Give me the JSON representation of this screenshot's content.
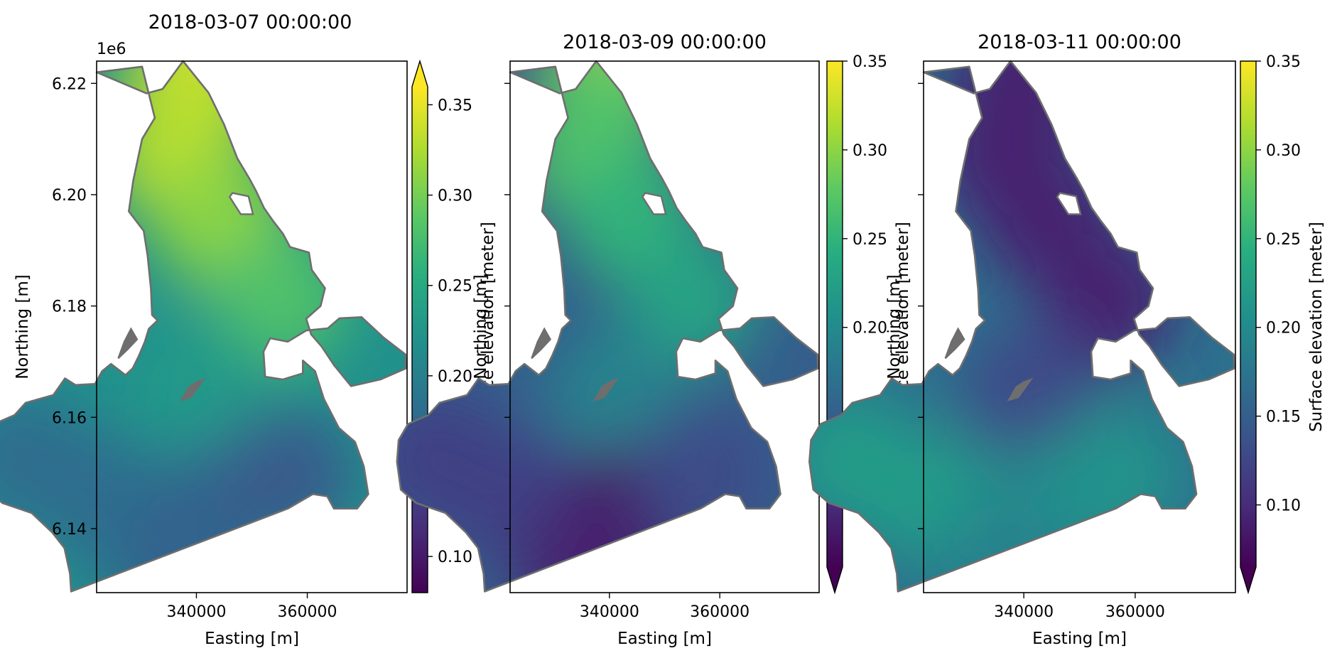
{
  "figure": {
    "panels": [
      {
        "title": "2018-03-07 00:00:00",
        "x_label": "Easting [m]",
        "y_label": "Northing [m]",
        "y_offset_label": "1e6",
        "colorbar_label": "Surface elevation [meter]"
      },
      {
        "title": "2018-03-09 00:00:00",
        "x_label": "Easting [m]",
        "y_label": "Northing [m]",
        "colorbar_label": "Surface elevation [meter]"
      },
      {
        "title": "2018-03-11 00:00:00",
        "x_label": "Easting [m]",
        "y_label": "Northing [m]",
        "colorbar_label": "Surface elevation [meter]"
      }
    ],
    "colormap": [
      "#440154",
      "#472d7b",
      "#3b528b",
      "#2c728e",
      "#21918c",
      "#28ae80",
      "#5ec962",
      "#addc30",
      "#fde725"
    ],
    "outline_color": "#6e6e6e"
  },
  "chart_data": [
    {
      "type": "heatmap",
      "title": "2018-03-07 00:00:00",
      "xlabel": "Easting [m]",
      "ylabel": "Northing [m]",
      "xlim": [
        322000,
        378000
      ],
      "ylim": [
        6128500,
        6224000
      ],
      "x_ticks": [
        340000,
        360000
      ],
      "x_tick_labels": [
        "340000",
        "360000"
      ],
      "y_ticks": [
        6140000,
        6160000,
        6180000,
        6200000,
        6220000
      ],
      "y_tick_labels": [
        "6.14",
        "6.16",
        "6.18",
        "6.20",
        "6.22"
      ],
      "y_offset_text": "1e6",
      "colorbar": {
        "label": "Surface elevation [meter]",
        "range": [
          0.08,
          0.36
        ],
        "ticks": [
          0.1,
          0.15,
          0.2,
          0.25,
          0.3,
          0.35
        ],
        "tick_labels": [
          "0.10",
          "0.15",
          "0.20",
          "0.25",
          "0.30",
          "0.35"
        ],
        "extend": "max"
      },
      "surface_elevation_m": [
        {
          "region": "north_tip",
          "value": 0.35
        },
        {
          "region": "north_upper",
          "value": 0.33
        },
        {
          "region": "north_middle",
          "value": 0.31
        },
        {
          "region": "east_lobe",
          "value": 0.28
        },
        {
          "region": "channel",
          "value": 0.23
        },
        {
          "region": "south_west",
          "value": 0.18
        },
        {
          "region": "south_center",
          "value": 0.17
        },
        {
          "region": "south_east",
          "value": 0.16
        },
        {
          "region": "south_tip",
          "value": 0.17
        }
      ]
    },
    {
      "type": "heatmap",
      "title": "2018-03-09 00:00:00",
      "xlabel": "Easting [m]",
      "ylabel": "Northing [m]",
      "xlim": [
        322000,
        378000
      ],
      "ylim": [
        6128500,
        6224000
      ],
      "x_ticks": [
        340000,
        360000
      ],
      "x_tick_labels": [
        "340000",
        "360000"
      ],
      "y_ticks": [
        6140000,
        6160000,
        6180000,
        6200000,
        6220000
      ],
      "y_tick_labels": [],
      "colorbar": {
        "label": "Surface elevation [meter]",
        "range": [
          0.065,
          0.35
        ],
        "ticks": [
          0.1,
          0.15,
          0.2,
          0.25,
          0.3,
          0.35
        ],
        "tick_labels": [
          "0.10",
          "0.15",
          "0.20",
          "0.25",
          "0.30",
          "0.35"
        ],
        "extend": "min"
      },
      "surface_elevation_m": [
        {
          "region": "north_tip",
          "value": 0.31
        },
        {
          "region": "north_upper",
          "value": 0.27
        },
        {
          "region": "north_middle",
          "value": 0.25
        },
        {
          "region": "east_lobe",
          "value": 0.23
        },
        {
          "region": "channel",
          "value": 0.19
        },
        {
          "region": "south_west",
          "value": 0.12
        },
        {
          "region": "south_center",
          "value": 0.08
        },
        {
          "region": "south_east",
          "value": 0.13
        },
        {
          "region": "south_tip",
          "value": 0.09
        }
      ]
    },
    {
      "type": "heatmap",
      "title": "2018-03-11 00:00:00",
      "xlabel": "Easting [m]",
      "ylabel": "Northing [m]",
      "xlim": [
        322000,
        378000
      ],
      "ylim": [
        6128500,
        6224000
      ],
      "x_ticks": [
        340000,
        360000
      ],
      "x_tick_labels": [
        "340000",
        "360000"
      ],
      "y_ticks": [
        6140000,
        6160000,
        6180000,
        6200000,
        6220000
      ],
      "y_tick_labels": [],
      "colorbar": {
        "label": "Surface elevation [meter]",
        "range": [
          0.065,
          0.35
        ],
        "ticks": [
          0.1,
          0.15,
          0.2,
          0.25,
          0.3,
          0.35
        ],
        "tick_labels": [
          "0.10",
          "0.15",
          "0.20",
          "0.25",
          "0.30",
          "0.35"
        ],
        "extend": "min"
      },
      "surface_elevation_m": [
        {
          "region": "north_tip",
          "value": 0.09
        },
        {
          "region": "north_upper",
          "value": 0.09
        },
        {
          "region": "north_middle",
          "value": 0.09
        },
        {
          "region": "east_lobe",
          "value": 0.09
        },
        {
          "region": "channel",
          "value": 0.13
        },
        {
          "region": "south_west",
          "value": 0.22
        },
        {
          "region": "south_center",
          "value": 0.2
        },
        {
          "region": "south_east",
          "value": 0.21
        },
        {
          "region": "south_tip",
          "value": 0.19
        }
      ]
    }
  ]
}
